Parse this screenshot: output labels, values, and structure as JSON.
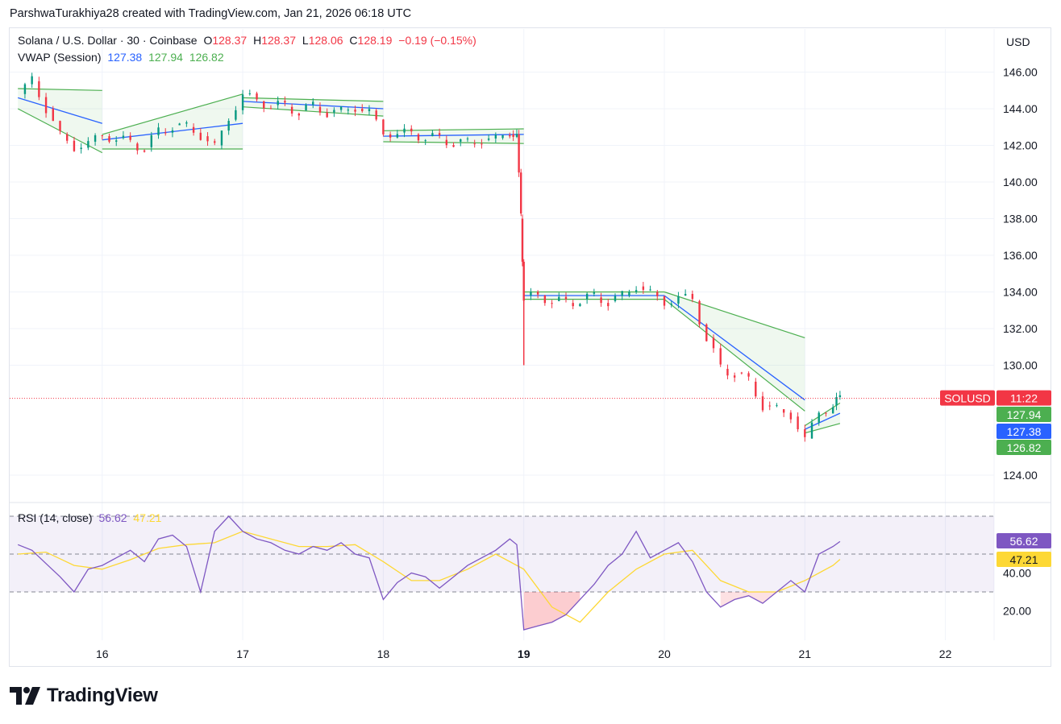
{
  "credit": "ParshwaTurakhiya28 created with TradingView.com, Jan 21, 2026 06:18 UTC",
  "legend": {
    "symbol": "Solana / U.S. Dollar · 30 · Coinbase",
    "o_label": "O",
    "o_value": "128.37",
    "h_label": "H",
    "h_value": "128.37",
    "l_label": "L",
    "l_value": "128.06",
    "c_label": "C",
    "c_value": "128.19",
    "change": "−0.19 (−0.15%)",
    "vwap_label": "VWAP (Session)",
    "vwap_values": [
      "127.38",
      "127.94",
      "126.82"
    ],
    "rsi_label": "RSI (14, close)",
    "rsi_values": [
      "56.62",
      "47.21"
    ]
  },
  "currency_button": "USD",
  "colors": {
    "up": "#089981",
    "down": "#f23645",
    "vwap": "#2962ff",
    "band": "#4caf50",
    "rsi": "#7e57c2",
    "rsi_ma": "#fdd835",
    "price_line": "#f23645"
  },
  "price_labels": [
    {
      "text": "SOLUSD",
      "color": "#f23645"
    },
    {
      "text": "11:22",
      "color": "#f23645"
    },
    {
      "text": "127.94",
      "color": "#4caf50"
    },
    {
      "text": "127.38",
      "color": "#2962ff"
    },
    {
      "text": "126.82",
      "color": "#4caf50"
    },
    {
      "text": "56.62",
      "color": "#7e57c2"
    },
    {
      "text": "47.21",
      "color": "#fdd835"
    }
  ],
  "chart_data": {
    "type": "candlestick",
    "x_ticks": [
      "16",
      "17",
      "18",
      "19",
      "20",
      "21",
      "22"
    ],
    "y_ticks": [
      "146.00",
      "144.00",
      "142.00",
      "140.00",
      "138.00",
      "136.00",
      "134.00",
      "132.00",
      "130.00",
      "124.00"
    ],
    "last_price": 128.19,
    "price_series": [
      [
        15.4,
        144.8
      ],
      [
        15.5,
        145.5
      ],
      [
        15.6,
        144.0
      ],
      [
        15.7,
        142.6
      ],
      [
        15.8,
        141.8
      ],
      [
        15.9,
        142.2
      ],
      [
        16.0,
        142.5
      ],
      [
        16.1,
        142.4
      ],
      [
        16.2,
        142.1
      ],
      [
        16.3,
        141.9
      ],
      [
        16.4,
        142.7
      ],
      [
        16.5,
        143.1
      ],
      [
        16.6,
        143.0
      ],
      [
        16.7,
        142.5
      ],
      [
        16.8,
        142.0
      ],
      [
        16.9,
        143.4
      ],
      [
        17.0,
        144.8
      ],
      [
        17.1,
        144.4
      ],
      [
        17.2,
        144.2
      ],
      [
        17.3,
        144.1
      ],
      [
        17.4,
        143.9
      ],
      [
        17.5,
        144.1
      ],
      [
        17.6,
        143.8
      ],
      [
        17.7,
        143.9
      ],
      [
        17.8,
        144.0
      ],
      [
        17.9,
        143.9
      ],
      [
        18.0,
        142.6
      ],
      [
        18.1,
        142.7
      ],
      [
        18.2,
        142.6
      ],
      [
        18.3,
        142.5
      ],
      [
        18.4,
        142.3
      ],
      [
        18.5,
        142.2
      ],
      [
        18.6,
        142.1
      ],
      [
        18.7,
        142.3
      ],
      [
        18.8,
        142.4
      ],
      [
        18.9,
        142.6
      ],
      [
        18.95,
        142.6
      ],
      [
        18.98,
        138.0
      ],
      [
        19.0,
        133.8
      ],
      [
        19.1,
        133.8
      ],
      [
        19.2,
        133.5
      ],
      [
        19.3,
        133.4
      ],
      [
        19.4,
        133.6
      ],
      [
        19.5,
        133.7
      ],
      [
        19.6,
        133.5
      ],
      [
        19.7,
        133.8
      ],
      [
        19.8,
        134.3
      ],
      [
        19.9,
        134.0
      ],
      [
        20.0,
        133.3
      ],
      [
        20.1,
        133.8
      ],
      [
        20.2,
        133.5
      ],
      [
        20.3,
        131.5
      ],
      [
        20.4,
        129.8
      ],
      [
        20.5,
        129.6
      ],
      [
        20.6,
        129.1
      ],
      [
        20.7,
        127.8
      ],
      [
        20.8,
        127.6
      ],
      [
        20.9,
        127.2
      ],
      [
        21.0,
        126.0
      ],
      [
        21.1,
        127.4
      ],
      [
        21.2,
        127.8
      ],
      [
        21.25,
        128.19
      ]
    ],
    "vwap_segments": [
      {
        "x": [
          15.4,
          16.0
        ],
        "vwap": [
          144.6,
          143.2
        ],
        "upper": [
          145.1,
          145.0
        ],
        "lower": [
          144.0,
          141.6
        ]
      },
      {
        "x": [
          16.0,
          17.0
        ],
        "vwap": [
          142.3,
          143.2
        ],
        "upper": [
          142.6,
          144.8
        ],
        "lower": [
          141.8,
          141.8
        ]
      },
      {
        "x": [
          17.0,
          18.0
        ],
        "vwap": [
          144.4,
          144.0
        ],
        "upper": [
          144.6,
          144.4
        ],
        "lower": [
          144.1,
          143.6
        ]
      },
      {
        "x": [
          18.0,
          19.0
        ],
        "vwap": [
          142.5,
          142.6
        ],
        "upper": [
          142.8,
          142.9
        ],
        "lower": [
          142.2,
          142.1
        ]
      },
      {
        "x": [
          19.0,
          20.0
        ],
        "vwap": [
          133.8,
          133.8
        ],
        "upper": [
          134.0,
          134.0
        ],
        "lower": [
          133.6,
          133.6
        ]
      },
      {
        "x": [
          20.0,
          21.0
        ],
        "vwap": [
          133.8,
          128.1
        ],
        "upper": [
          134.0,
          131.5
        ],
        "lower": [
          133.6,
          127.5
        ]
      },
      {
        "x": [
          21.0,
          21.25
        ],
        "vwap": [
          126.5,
          127.38
        ],
        "upper": [
          126.7,
          127.94
        ],
        "lower": [
          126.3,
          126.82
        ]
      }
    ],
    "rsi": {
      "y_ticks": [
        "40.00",
        "20.00"
      ],
      "bands": [
        70,
        50,
        30
      ],
      "rsi_series": [
        [
          15.4,
          55
        ],
        [
          15.5,
          52
        ],
        [
          15.6,
          45
        ],
        [
          15.7,
          38
        ],
        [
          15.8,
          30
        ],
        [
          15.9,
          42
        ],
        [
          16.0,
          44
        ],
        [
          16.1,
          48
        ],
        [
          16.2,
          52
        ],
        [
          16.3,
          46
        ],
        [
          16.4,
          58
        ],
        [
          16.5,
          60
        ],
        [
          16.6,
          54
        ],
        [
          16.7,
          30
        ],
        [
          16.8,
          62
        ],
        [
          16.9,
          70
        ],
        [
          17.0,
          62
        ],
        [
          17.1,
          58
        ],
        [
          17.2,
          56
        ],
        [
          17.3,
          52
        ],
        [
          17.4,
          50
        ],
        [
          17.5,
          54
        ],
        [
          17.6,
          52
        ],
        [
          17.7,
          56
        ],
        [
          17.8,
          50
        ],
        [
          17.9,
          48
        ],
        [
          18.0,
          26
        ],
        [
          18.1,
          35
        ],
        [
          18.2,
          40
        ],
        [
          18.3,
          38
        ],
        [
          18.4,
          32
        ],
        [
          18.5,
          38
        ],
        [
          18.6,
          44
        ],
        [
          18.7,
          48
        ],
        [
          18.8,
          52
        ],
        [
          18.9,
          58
        ],
        [
          18.95,
          55
        ],
        [
          19.0,
          10
        ],
        [
          19.1,
          12
        ],
        [
          19.2,
          14
        ],
        [
          19.3,
          18
        ],
        [
          19.4,
          26
        ],
        [
          19.5,
          34
        ],
        [
          19.6,
          44
        ],
        [
          19.7,
          50
        ],
        [
          19.8,
          62
        ],
        [
          19.9,
          48
        ],
        [
          20.0,
          52
        ],
        [
          20.1,
          56
        ],
        [
          20.2,
          46
        ],
        [
          20.3,
          30
        ],
        [
          20.4,
          22
        ],
        [
          20.5,
          26
        ],
        [
          20.6,
          28
        ],
        [
          20.7,
          24
        ],
        [
          20.8,
          30
        ],
        [
          20.9,
          36
        ],
        [
          21.0,
          30
        ],
        [
          21.1,
          50
        ],
        [
          21.2,
          54
        ],
        [
          21.25,
          56.62
        ]
      ],
      "ma_series": [
        [
          15.4,
          50
        ],
        [
          15.6,
          51
        ],
        [
          15.8,
          44
        ],
        [
          16.0,
          42
        ],
        [
          16.2,
          47
        ],
        [
          16.4,
          53
        ],
        [
          16.6,
          55
        ],
        [
          16.8,
          56
        ],
        [
          17.0,
          62
        ],
        [
          17.2,
          58
        ],
        [
          17.4,
          54
        ],
        [
          17.6,
          54
        ],
        [
          17.8,
          55
        ],
        [
          18.0,
          46
        ],
        [
          18.2,
          36
        ],
        [
          18.4,
          36
        ],
        [
          18.6,
          42
        ],
        [
          18.8,
          50
        ],
        [
          19.0,
          42
        ],
        [
          19.2,
          22
        ],
        [
          19.4,
          14
        ],
        [
          19.6,
          30
        ],
        [
          19.8,
          42
        ],
        [
          20.0,
          50
        ],
        [
          20.2,
          52
        ],
        [
          20.4,
          36
        ],
        [
          20.6,
          30
        ],
        [
          20.8,
          30
        ],
        [
          21.0,
          36
        ],
        [
          21.2,
          44
        ],
        [
          21.25,
          47.21
        ]
      ]
    }
  }
}
